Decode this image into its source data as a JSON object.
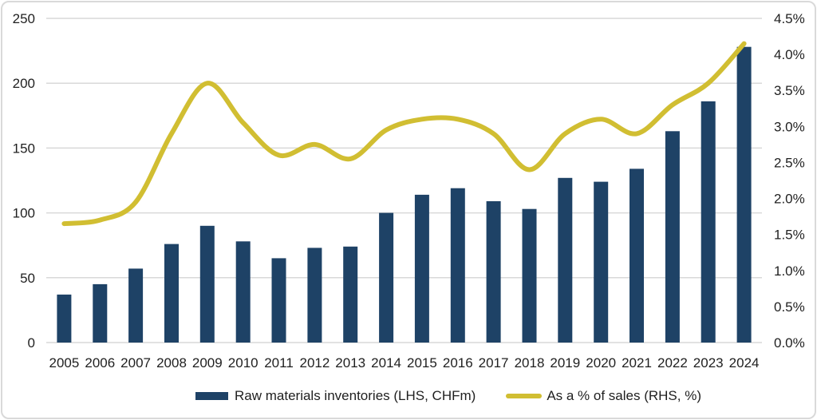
{
  "chart_data": {
    "type": "combo",
    "title": "",
    "categories": [
      "2005",
      "2006",
      "2007",
      "2008",
      "2009",
      "2010",
      "2011",
      "2012",
      "2013",
      "2014",
      "2015",
      "2016",
      "2017",
      "2018",
      "2019",
      "2020",
      "2021",
      "2022",
      "2023",
      "2024"
    ],
    "series": [
      {
        "name": "Raw materials inventories (LHS, CHFm)",
        "type": "bar",
        "axis": "left",
        "color": "#1E4266",
        "values": [
          37,
          45,
          57,
          76,
          90,
          78,
          65,
          73,
          74,
          100,
          114,
          119,
          109,
          103,
          127,
          124,
          134,
          163,
          186,
          228
        ]
      },
      {
        "name": "As a % of sales (RHS, %)",
        "type": "line",
        "axis": "right",
        "color": "#D1BE32",
        "values": [
          1.65,
          1.7,
          1.95,
          2.9,
          3.6,
          3.05,
          2.6,
          2.75,
          2.55,
          2.95,
          3.1,
          3.1,
          2.9,
          2.4,
          2.9,
          3.1,
          2.9,
          3.3,
          3.6,
          4.15
        ]
      }
    ],
    "left_axis": {
      "min": 0,
      "max": 250,
      "step": 50,
      "labels": [
        "0",
        "50",
        "100",
        "150",
        "200",
        "250"
      ]
    },
    "right_axis": {
      "min": 0,
      "max": 4.5,
      "step": 0.5,
      "labels": [
        "0.0%",
        "0.5%",
        "1.0%",
        "1.5%",
        "2.0%",
        "2.5%",
        "3.0%",
        "3.5%",
        "4.0%",
        "4.5%"
      ]
    },
    "grid": true,
    "legend_position": "bottom",
    "line_smooth": true
  },
  "colors": {
    "bar": "#1E4266",
    "line": "#D1BE32",
    "grid": "#D9D9D9",
    "text": "#1F1F1F",
    "frame": "#D9D9D9",
    "background": "#FFFFFF"
  }
}
